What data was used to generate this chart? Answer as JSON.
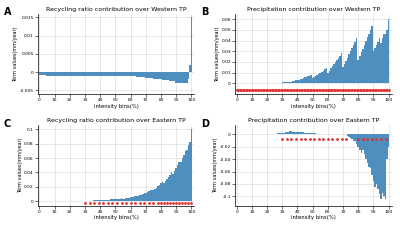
{
  "title_A": "Recycling ratio contribution over Western TP",
  "title_B": "Precipitation contribution over Western TP",
  "title_C": "Recycling ratio contribution over Eastern TP",
  "title_D": "Precipitation contribution over Eastern TP",
  "ylabel": "Term values(mm/year)",
  "xlabel": "intensity bins(%)",
  "label_A": "A",
  "label_B": "B",
  "label_C": "C",
  "label_D": "D",
  "bar_color": "#4f8fbf",
  "red_dot_color": "#e03030",
  "background_color": "#ffffff",
  "grid_color": "#cccccc"
}
